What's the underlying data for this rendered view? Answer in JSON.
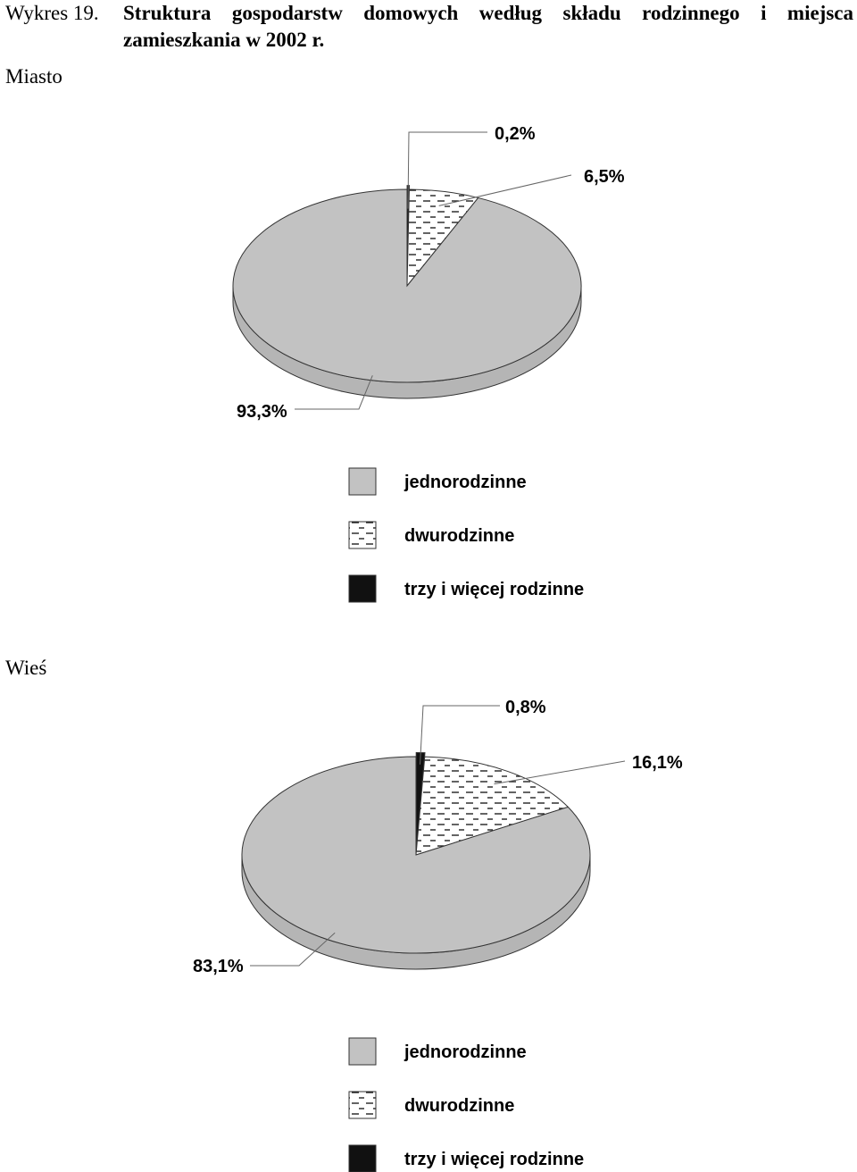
{
  "figure": {
    "prefix": "Wykres 19.",
    "title": "Struktura gospodarstw domowych według składu rodzinnego i miejsca zamieszkania w 2002 r."
  },
  "colors": {
    "gray": "#c2c2c2",
    "dashed_bg": "#ffffff",
    "black": "#111111",
    "outline": "#333333"
  },
  "chart_data": [
    {
      "type": "pie",
      "section_label": "Miasto",
      "categories": [
        "jednorodzinne",
        "dwurodzinne",
        "trzy i więcej rodzinne"
      ],
      "values": [
        93.3,
        6.5,
        0.2
      ],
      "value_labels": [
        "93,3%",
        "6,5%",
        "0,2%"
      ],
      "legend": [
        "jednorodzinne",
        "dwurodzinne",
        "trzy i więcej rodzinne"
      ],
      "legend_position": "bottom"
    },
    {
      "type": "pie",
      "section_label": "Wieś",
      "categories": [
        "jednorodzinne",
        "dwurodzinne",
        "trzy i więcej rodzinne"
      ],
      "values": [
        83.1,
        16.1,
        0.8
      ],
      "value_labels": [
        "83,1%",
        "16,1%",
        "0,8%"
      ],
      "legend": [
        "jednorodzinne",
        "dwurodzinne",
        "trzy i więcej rodzinne"
      ],
      "legend_position": "bottom"
    }
  ]
}
